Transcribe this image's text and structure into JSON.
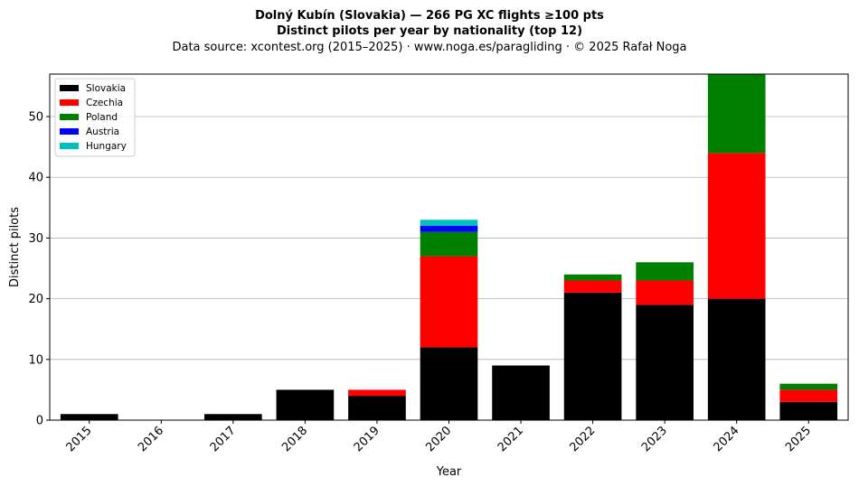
{
  "chart_data": {
    "type": "bar",
    "stacked": true,
    "title": "Dolný Kubín (Slovakia)  —  266 PG XC flights ≥100 pts",
    "subtitle": "Distinct pilots per year by nationality (top 12)",
    "source": "Data source: xcontest.org (2015–2025)  ·  www.noga.es/paragliding  ·  © 2025 Rafał Noga",
    "xlabel": "Year",
    "ylabel": "Distinct pilots",
    "ylim": [
      0,
      57
    ],
    "yticks": [
      0,
      10,
      20,
      30,
      40,
      50
    ],
    "grid": "y",
    "legend_position": "top-left",
    "categories": [
      "2015",
      "2016",
      "2017",
      "2018",
      "2019",
      "2020",
      "2021",
      "2022",
      "2023",
      "2024",
      "2025"
    ],
    "series": [
      {
        "name": "Slovakia",
        "color": "#000000",
        "values": [
          1,
          0,
          1,
          5,
          4,
          12,
          9,
          21,
          19,
          20,
          3
        ]
      },
      {
        "name": "Czechia",
        "color": "#ff0000",
        "values": [
          0,
          0,
          0,
          0,
          1,
          15,
          0,
          2,
          4,
          24,
          2
        ]
      },
      {
        "name": "Poland",
        "color": "#008000",
        "values": [
          0,
          0,
          0,
          0,
          0,
          4,
          0,
          1,
          3,
          13,
          1
        ]
      },
      {
        "name": "Austria",
        "color": "#0000ff",
        "values": [
          0,
          0,
          0,
          0,
          0,
          1,
          0,
          0,
          0,
          0,
          0
        ]
      },
      {
        "name": "Hungary",
        "color": "#00bfbf",
        "values": [
          0,
          0,
          0,
          0,
          0,
          1,
          0,
          0,
          0,
          0,
          0
        ]
      }
    ]
  }
}
